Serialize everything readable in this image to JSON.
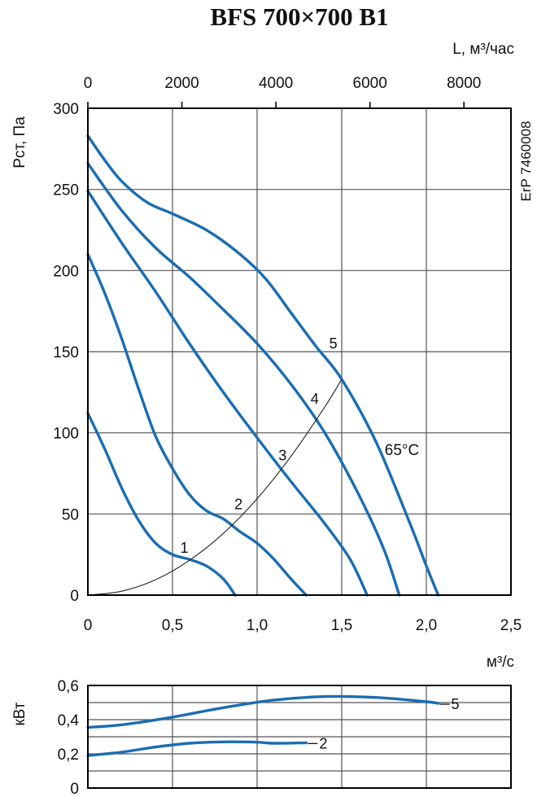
{
  "colors": {
    "curve": "#1a6db3",
    "system_line": "#222222",
    "grid": "#555555"
  },
  "chart_data": [
    {
      "type": "line",
      "title": "BFS 700×700 B1",
      "xlabel": "м³/с",
      "x2label": "L, м³/час",
      "ylabel": "Pст, Па",
      "side_label": "ErP 7460008",
      "temperature_label": "65°C",
      "xlim": [
        0,
        2.5
      ],
      "x2lim": [
        0,
        9000
      ],
      "ylim": [
        0,
        300
      ],
      "x_ticks": [
        "0",
        "0,5",
        "1,0",
        "1,5",
        "2,0",
        "2,5"
      ],
      "x2_ticks": [
        "0",
        "2000",
        "4000",
        "6000",
        "8000"
      ],
      "y_ticks": [
        "0",
        "50",
        "100",
        "150",
        "200",
        "250",
        "300"
      ],
      "grid": true,
      "series": [
        {
          "name": "1",
          "x": [
            0,
            0.1,
            0.2,
            0.3,
            0.4,
            0.5,
            0.6,
            0.7,
            0.8,
            0.87
          ],
          "y": [
            112,
            90,
            66,
            46,
            32,
            25,
            22,
            18,
            10,
            0
          ]
        },
        {
          "name": "2",
          "x": [
            0,
            0.1,
            0.2,
            0.3,
            0.4,
            0.5,
            0.6,
            0.7,
            0.8,
            0.9,
            1.0,
            1.1,
            1.2,
            1.29
          ],
          "y": [
            210,
            186,
            158,
            127,
            98,
            78,
            62,
            52,
            47,
            39,
            32,
            22,
            10,
            0
          ]
        },
        {
          "name": "3",
          "x": [
            0,
            0.2,
            0.4,
            0.6,
            0.8,
            1.0,
            1.2,
            1.4,
            1.55,
            1.65
          ],
          "y": [
            249,
            217,
            187,
            155,
            125,
            97,
            70,
            44,
            22,
            0
          ]
        },
        {
          "name": "4",
          "x": [
            0,
            0.2,
            0.4,
            0.6,
            0.8,
            1.0,
            1.2,
            1.4,
            1.6,
            1.75,
            1.84
          ],
          "y": [
            266,
            237,
            214,
            196,
            176,
            155,
            130,
            100,
            62,
            28,
            0
          ]
        },
        {
          "name": "5",
          "x": [
            0,
            0.1,
            0.2,
            0.35,
            0.5,
            0.7,
            0.9,
            1.05,
            1.2,
            1.35,
            1.5,
            1.7,
            1.9,
            2.0,
            2.07
          ],
          "y": [
            283,
            268,
            255,
            242,
            235,
            225,
            210,
            195,
            174,
            153,
            133,
            95,
            45,
            18,
            0
          ]
        }
      ],
      "system_line": {
        "x": [
          0,
          0.2,
          0.4,
          0.6,
          0.8,
          1.0,
          1.2,
          1.4,
          1.5
        ],
        "y": [
          0,
          2.4,
          9.5,
          21.4,
          38,
          59.4,
          85.5,
          116,
          133
        ]
      }
    },
    {
      "type": "line",
      "xlabel": "",
      "ylabel": "кВт",
      "xlim": [
        0,
        2.5
      ],
      "ylim": [
        0,
        0.6
      ],
      "y_ticks": [
        "0",
        "0,2",
        "0,4",
        "0,6"
      ],
      "grid": true,
      "series": [
        {
          "name": "5",
          "x": [
            0,
            0.2,
            0.5,
            0.8,
            1.1,
            1.4,
            1.7,
            2.0,
            2.07
          ],
          "y": [
            0.355,
            0.37,
            0.415,
            0.47,
            0.515,
            0.535,
            0.53,
            0.505,
            0.495
          ]
        },
        {
          "name": "2",
          "x": [
            0,
            0.2,
            0.4,
            0.6,
            0.8,
            1.0,
            1.1,
            1.29
          ],
          "y": [
            0.19,
            0.21,
            0.24,
            0.262,
            0.27,
            0.268,
            0.262,
            0.265
          ]
        }
      ]
    }
  ]
}
